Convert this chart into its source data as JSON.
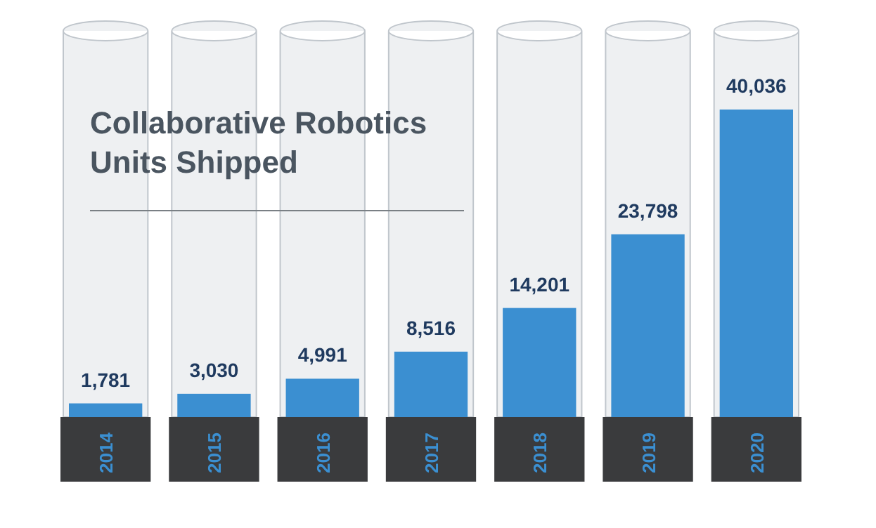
{
  "chart_data": {
    "type": "bar",
    "title": "Collaborative Robotics\nUnits Shipped",
    "categories": [
      "2014",
      "2015",
      "2016",
      "2017",
      "2018",
      "2019",
      "2020"
    ],
    "values": [
      1781,
      3030,
      4991,
      8516,
      14201,
      23798,
      40036
    ],
    "value_labels": [
      "1,781",
      "3,030",
      "4,991",
      "8,516",
      "14,201",
      "23,798",
      "40,036"
    ],
    "color": "#3b8fd1"
  }
}
